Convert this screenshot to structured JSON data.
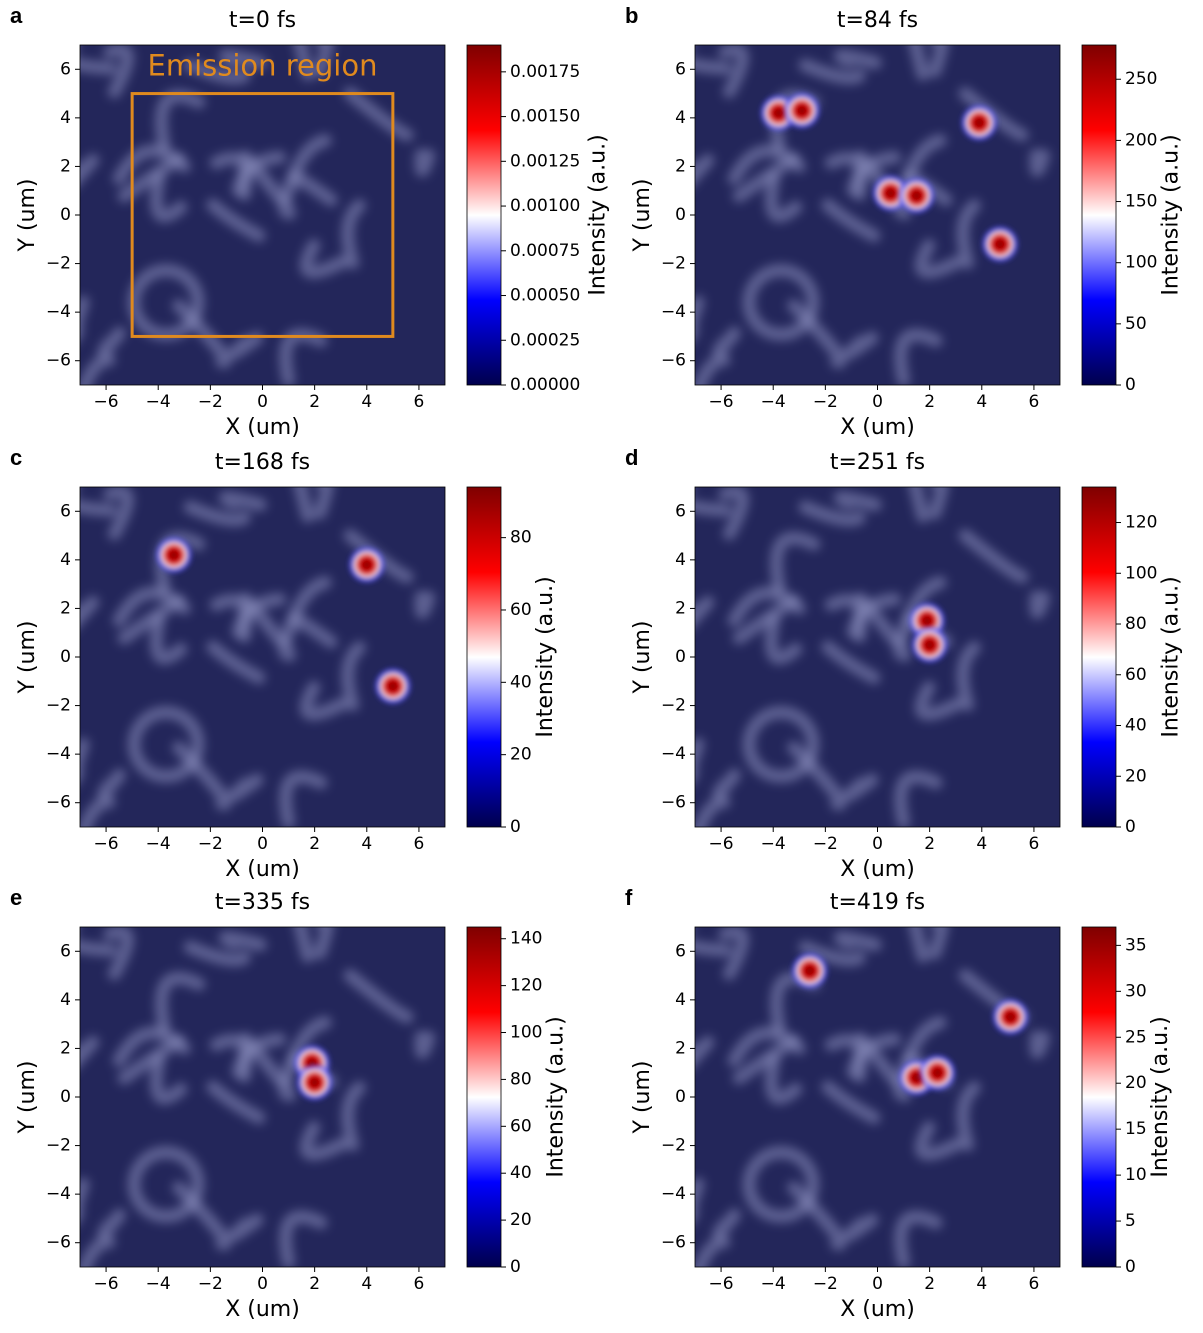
{
  "chart_data": [
    {
      "type": "heatmap",
      "panel": "a",
      "title": "t=0 fs",
      "xlabel": "X (um)",
      "ylabel": "Y (um)",
      "colorbar_label": "Intensity (a.u.)",
      "xlim": [
        -7,
        7
      ],
      "ylim": [
        -7,
        7
      ],
      "xticks": [
        {
          "value": -6,
          "label": "−6"
        },
        {
          "value": -4,
          "label": "−4"
        },
        {
          "value": -2,
          "label": "−2"
        },
        0,
        2,
        4,
        6
      ],
      "yticks": [
        {
          "value": -6,
          "label": "−6"
        },
        {
          "value": -4,
          "label": "−4"
        },
        {
          "value": -2,
          "label": "−2"
        },
        0,
        2,
        4,
        6
      ],
      "clim": [
        0,
        0.0019
      ],
      "cticks": [
        {
          "value": 0,
          "label": "0.00000"
        },
        0.00025,
        {
          "value": 0.0005,
          "label": "0.00050"
        },
        0.00075,
        {
          "value": 0.001,
          "label": "0.00100"
        },
        0.00125,
        {
          "value": 0.0015,
          "label": "0.00150"
        },
        0.00175
      ],
      "annotation": "Emission region",
      "region": {
        "x": [
          -5,
          5
        ],
        "y": [
          -5,
          5
        ]
      },
      "peaks": {
        "x": [],
        "y": []
      }
    },
    {
      "type": "heatmap",
      "panel": "b",
      "title": "t=84 fs",
      "xlabel": "X (um)",
      "ylabel": "Y (um)",
      "colorbar_label": "Intensity (a.u.)",
      "xlim": [
        -7,
        7
      ],
      "ylim": [
        -7,
        7
      ],
      "xticks": [
        {
          "value": -6,
          "label": "−6"
        },
        {
          "value": -4,
          "label": "−4"
        },
        {
          "value": -2,
          "label": "−2"
        },
        0,
        2,
        4,
        6
      ],
      "yticks": [
        {
          "value": -6,
          "label": "−6"
        },
        {
          "value": -4,
          "label": "−4"
        },
        {
          "value": -2,
          "label": "−2"
        },
        0,
        2,
        4,
        6
      ],
      "clim": [
        0,
        278
      ],
      "cticks": [
        0,
        50,
        100,
        150,
        200,
        250
      ],
      "peaks": {
        "x": [
          -3.8,
          -2.9,
          3.9,
          0.5,
          1.5,
          4.7
        ],
        "y": [
          4.2,
          4.3,
          3.8,
          0.9,
          0.8,
          -1.2
        ]
      }
    },
    {
      "type": "heatmap",
      "panel": "c",
      "title": "t=168 fs",
      "xlabel": "X (um)",
      "ylabel": "Y (um)",
      "colorbar_label": "Intensity (a.u.)",
      "xlim": [
        -7,
        7
      ],
      "ylim": [
        -7,
        7
      ],
      "xticks": [
        {
          "value": -6,
          "label": "−6"
        },
        {
          "value": -4,
          "label": "−4"
        },
        {
          "value": -2,
          "label": "−2"
        },
        0,
        2,
        4,
        6
      ],
      "yticks": [
        {
          "value": -6,
          "label": "−6"
        },
        {
          "value": -4,
          "label": "−4"
        },
        {
          "value": -2,
          "label": "−2"
        },
        0,
        2,
        4,
        6
      ],
      "clim": [
        0,
        94
      ],
      "cticks": [
        0,
        20,
        40,
        60,
        80
      ],
      "peaks": {
        "x": [
          -3.4,
          4.0,
          5.0
        ],
        "y": [
          4.2,
          3.8,
          -1.2
        ]
      }
    },
    {
      "type": "heatmap",
      "panel": "d",
      "title": "t=251 fs",
      "xlabel": "X (um)",
      "ylabel": "Y (um)",
      "colorbar_label": "Intensity (a.u.)",
      "xlim": [
        -7,
        7
      ],
      "ylim": [
        -7,
        7
      ],
      "xticks": [
        {
          "value": -6,
          "label": "−6"
        },
        {
          "value": -4,
          "label": "−4"
        },
        {
          "value": -2,
          "label": "−2"
        },
        0,
        2,
        4,
        6
      ],
      "yticks": [
        {
          "value": -6,
          "label": "−6"
        },
        {
          "value": -4,
          "label": "−4"
        },
        {
          "value": -2,
          "label": "−2"
        },
        0,
        2,
        4,
        6
      ],
      "clim": [
        0,
        134
      ],
      "cticks": [
        0,
        20,
        40,
        60,
        80,
        100,
        120
      ],
      "peaks": {
        "x": [
          1.9,
          2.0
        ],
        "y": [
          1.5,
          0.5
        ]
      }
    },
    {
      "type": "heatmap",
      "panel": "e",
      "title": "t=335 fs",
      "xlabel": "X (um)",
      "ylabel": "Y (um)",
      "colorbar_label": "Intensity (a.u.)",
      "xlim": [
        -7,
        7
      ],
      "ylim": [
        -7,
        7
      ],
      "xticks": [
        {
          "value": -6,
          "label": "−6"
        },
        {
          "value": -4,
          "label": "−4"
        },
        {
          "value": -2,
          "label": "−2"
        },
        0,
        2,
        4,
        6
      ],
      "yticks": [
        {
          "value": -6,
          "label": "−6"
        },
        {
          "value": -4,
          "label": "−4"
        },
        {
          "value": -2,
          "label": "−2"
        },
        0,
        2,
        4,
        6
      ],
      "clim": [
        0,
        145
      ],
      "cticks": [
        0,
        20,
        40,
        60,
        80,
        100,
        120,
        140
      ],
      "peaks": {
        "x": [
          1.9,
          2.0
        ],
        "y": [
          1.4,
          0.6
        ]
      }
    },
    {
      "type": "heatmap",
      "panel": "f",
      "title": "t=419 fs",
      "xlabel": "X (um)",
      "ylabel": "Y (um)",
      "colorbar_label": "Intensity (a.u.)",
      "xlim": [
        -7,
        7
      ],
      "ylim": [
        -7,
        7
      ],
      "xticks": [
        {
          "value": -6,
          "label": "−6"
        },
        {
          "value": -4,
          "label": "−4"
        },
        {
          "value": -2,
          "label": "−2"
        },
        0,
        2,
        4,
        6
      ],
      "yticks": [
        {
          "value": -6,
          "label": "−6"
        },
        {
          "value": -4,
          "label": "−4"
        },
        {
          "value": -2,
          "label": "−2"
        },
        0,
        2,
        4,
        6
      ],
      "clim": [
        0,
        37
      ],
      "cticks": [
        0,
        5,
        10,
        15,
        20,
        25,
        30,
        35
      ],
      "peaks": {
        "x": [
          1.5,
          2.3,
          5.1,
          -2.6
        ],
        "y": [
          0.8,
          1.0,
          3.3,
          5.2
        ]
      }
    }
  ],
  "colormap": [
    "#00004c",
    "#0000ff",
    "#ffffff",
    "#ff0000",
    "#7f0000"
  ],
  "annotation_color": "#e08a1e"
}
